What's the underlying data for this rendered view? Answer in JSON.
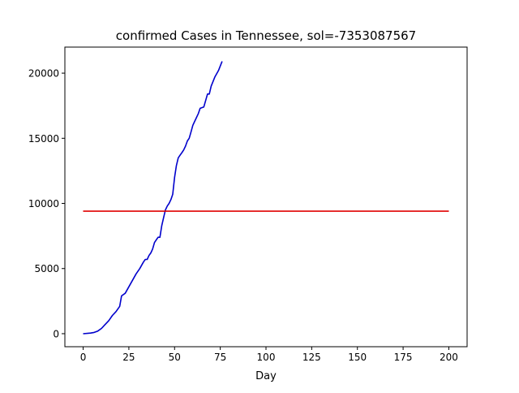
{
  "chart_data": {
    "type": "line",
    "title": "confirmed Cases in Tennessee, sol=-7353087567",
    "xlabel": "Day",
    "ylabel": "",
    "xlim": [
      -10,
      210
    ],
    "ylim": [
      -1000,
      22000
    ],
    "xticks": [
      0,
      25,
      50,
      75,
      100,
      125,
      150,
      175,
      200
    ],
    "yticks": [
      0,
      5000,
      10000,
      15000,
      20000
    ],
    "grid": false,
    "series": [
      {
        "color": "#0000cc",
        "x": [
          0,
          4,
          6,
          8,
          10,
          12,
          14,
          16,
          18,
          20,
          21,
          23,
          25,
          27,
          29,
          31,
          33,
          34,
          35,
          36,
          37,
          38,
          39,
          40,
          41,
          42,
          43,
          44,
          45,
          46,
          47,
          48,
          49,
          50,
          51,
          52,
          53,
          54,
          55,
          56,
          57,
          58,
          59,
          60,
          61,
          63,
          64,
          66,
          67,
          68,
          69,
          70,
          72,
          74,
          76
        ],
        "y": [
          0,
          50,
          100,
          200,
          400,
          700,
          1000,
          1400,
          1700,
          2100,
          2900,
          3100,
          3600,
          4100,
          4600,
          5000,
          5500,
          5700,
          5700,
          6000,
          6200,
          6500,
          7000,
          7200,
          7400,
          7400,
          8300,
          8900,
          9500,
          9800,
          10000,
          10300,
          10700,
          12000,
          12900,
          13500,
          13700,
          13900,
          14100,
          14400,
          14800,
          15000,
          15500,
          16000,
          16300,
          16900,
          17300,
          17400,
          17900,
          18400,
          18400,
          19000,
          19700,
          20200,
          20900
        ]
      },
      {
        "color": "#e00000",
        "x": [
          0,
          200
        ],
        "y": [
          9400,
          9400
        ]
      }
    ]
  }
}
